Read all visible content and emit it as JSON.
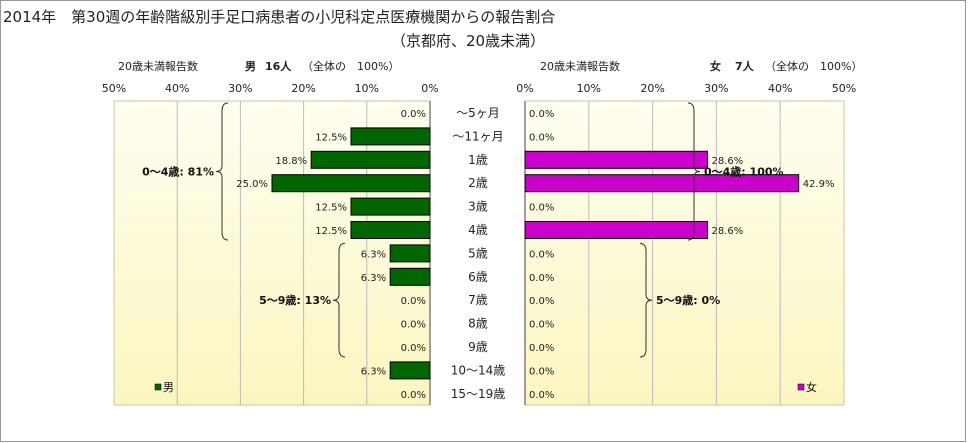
{
  "chart_data": {
    "type": "bar",
    "title": "2014年　第30週の年齢階級別手足口病患者の小児科定点医療機関からの報告割合",
    "subtitle": "（京都府、20歳未満）",
    "categories": [
      "～5ヶ月",
      "～11ヶ月",
      "1歳",
      "2歳",
      "3歳",
      "4歳",
      "5歳",
      "6歳",
      "7歳",
      "8歳",
      "9歳",
      "10～14歳",
      "15～19歳"
    ],
    "xlim": [
      0,
      50
    ],
    "ticks": [
      "0%",
      "10%",
      "20%",
      "30%",
      "40%",
      "50%"
    ],
    "grid": true,
    "male": {
      "header_label": "20歳未満報告数",
      "header_sex": "男",
      "header_count": "16人",
      "header_total": "（全体の　100%）",
      "legend": "男",
      "color": "#006600",
      "values": [
        0,
        12.5,
        18.8,
        25.0,
        12.5,
        12.5,
        6.3,
        6.3,
        0,
        0,
        0,
        6.3,
        0
      ],
      "value_labels": [
        "0.0%",
        "12.5%",
        "18.8%",
        "25.0%",
        "12.5%",
        "12.5%",
        "6.3%",
        "6.3%",
        "0.0%",
        "0.0%",
        "0.0%",
        "6.3%",
        "0.0%"
      ],
      "groups": [
        {
          "label": "0～4歳: 81%",
          "from": 0,
          "to": 5
        },
        {
          "label": "5～9歳: 13%",
          "from": 6,
          "to": 10
        }
      ]
    },
    "female": {
      "header_label": "20歳未満報告数",
      "header_sex": "女",
      "header_count": "7人",
      "header_total": "（全体の　100%）",
      "legend": "女",
      "color": "#cc00cc",
      "values": [
        0,
        0,
        28.6,
        42.9,
        0,
        28.6,
        0,
        0,
        0,
        0,
        0,
        0,
        0
      ],
      "value_labels": [
        "0.0%",
        "0.0%",
        "28.6%",
        "42.9%",
        "0.0%",
        "28.6%",
        "0.0%",
        "0.0%",
        "0.0%",
        "0.0%",
        "0.0%",
        "0.0%",
        "0.0%"
      ],
      "groups": [
        {
          "label": "0～4歳: 100%",
          "from": 0,
          "to": 5
        },
        {
          "label": "5～9歳: 0%",
          "from": 6,
          "to": 10
        }
      ]
    }
  }
}
